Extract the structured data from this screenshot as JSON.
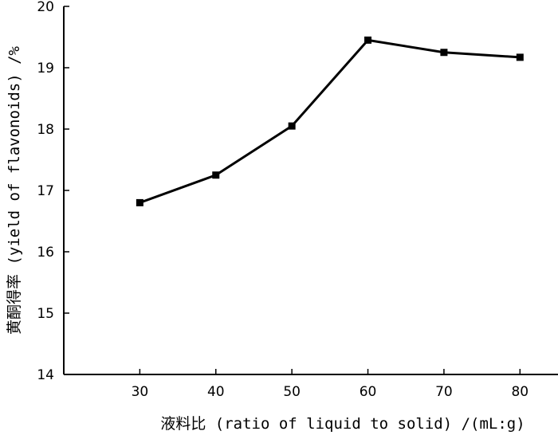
{
  "chart_data": {
    "type": "line",
    "x": [
      30,
      40,
      50,
      60,
      70,
      80
    ],
    "series": [
      {
        "values": [
          16.8,
          17.25,
          18.05,
          19.45,
          19.25,
          19.17
        ],
        "color": "#000000",
        "marker": "square"
      }
    ],
    "xlabel": "液料比 (ratio of liquid to solid) /(mL:g)",
    "ylabel": "黄酮得率 (yield of flavonoids) /%",
    "xlim": [
      20,
      85
    ],
    "ylim": [
      14,
      20
    ],
    "xticks": [
      30,
      40,
      50,
      60,
      70,
      80
    ],
    "yticks": [
      14,
      15,
      16,
      17,
      18,
      19,
      20
    ],
    "grid": false,
    "legend": "none"
  }
}
